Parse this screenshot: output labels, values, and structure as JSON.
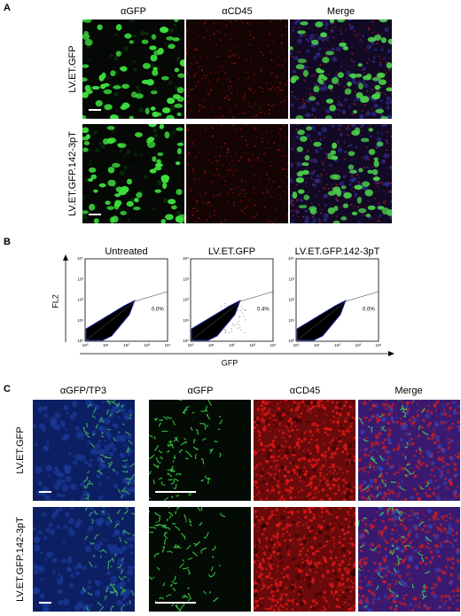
{
  "panels": [
    {
      "label": "A",
      "columns": [
        "αGFP",
        "αCD45",
        "Merge"
      ],
      "rows": [
        "LV.ET.GFP",
        "LV.ET.GFP.142-3pT"
      ]
    },
    {
      "label": "B",
      "plots": [
        {
          "title": "Untreated",
          "gate": "0.0%"
        },
        {
          "title": "LV.ET.GFP",
          "gate": "0.4%"
        },
        {
          "title": "LV.ET.GFP.142-3pT",
          "gate": "0.0%"
        }
      ],
      "ylabel": "FL2",
      "xlabel": "GFP",
      "ticks": [
        "10⁰",
        "10¹",
        "10²",
        "10³",
        "10⁴"
      ]
    },
    {
      "label": "C",
      "columns": [
        "αGFP/TP3",
        "αGFP",
        "αCD45",
        "Merge"
      ],
      "rows": [
        "LV.ET.GFP",
        "LV.ET.GFP.142-3pT"
      ]
    }
  ]
}
